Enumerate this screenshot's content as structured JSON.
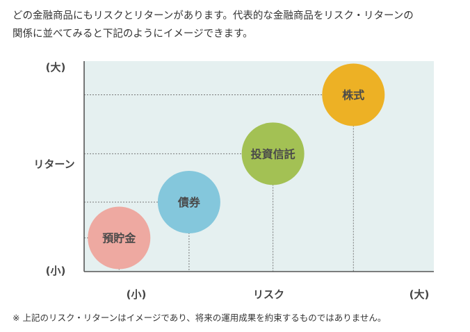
{
  "intro": {
    "line1": "どの金融商品にもリスクとリターンがあります。代表的な金融商品をリスク・リターンの",
    "line2": "関係に並べてみると下記のようにイメージできます。"
  },
  "note": "※ 上記のリスク・リターンはイメージであり、将来の運用成果を約束するものではありません。",
  "chart_data": {
    "type": "scatter",
    "title": "",
    "xlabel": "リスク",
    "ylabel": "リターン",
    "x_tick_labels": {
      "low": "(小)",
      "high": "(大)"
    },
    "y_tick_labels": {
      "low": "(小)",
      "high": "(大)"
    },
    "xlim": [
      0,
      1
    ],
    "ylim": [
      0,
      1
    ],
    "grid": false,
    "legend": "none",
    "series": [
      {
        "label": "預貯金",
        "x": 0.1,
        "y": 0.16,
        "color": "#eea9a1"
      },
      {
        "label": "債券",
        "x": 0.3,
        "y": 0.33,
        "color": "#84c7dc"
      },
      {
        "label": "投資信託",
        "x": 0.54,
        "y": 0.56,
        "color": "#a3c154"
      },
      {
        "label": "株式",
        "x": 0.77,
        "y": 0.84,
        "color": "#edb125"
      }
    ],
    "plot_background": "#e5f0f0",
    "axis_color": "#555555",
    "guide_line_color": "#777777"
  }
}
